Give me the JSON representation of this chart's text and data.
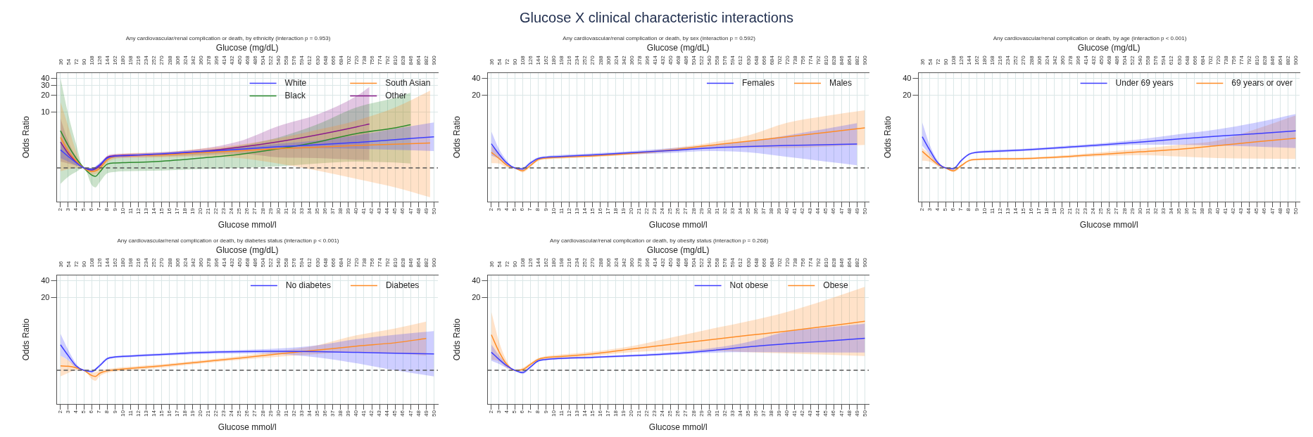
{
  "chart_data": [
    {
      "type": "line",
      "subtitle": "Any cardiovascular/renal complication or death, by ethnicity (interaction p = 0.953)",
      "xlabel": "Glucose mmol/l",
      "x2label": "Glucose (mg/dL)",
      "ylabel": "Odds Ratio",
      "log": "y",
      "grid": true,
      "legend": "top right",
      "xlim": [
        1.5,
        50.5
      ],
      "xticks": [
        2,
        3,
        4,
        5,
        6,
        7,
        8,
        9,
        10,
        11,
        12,
        13,
        14,
        15,
        16,
        17,
        18,
        19,
        20,
        21,
        22,
        23,
        24,
        25,
        26,
        27,
        28,
        29,
        30,
        31,
        32,
        33,
        34,
        35,
        36,
        37,
        38,
        39,
        40,
        41,
        42,
        43,
        44,
        45,
        46,
        47,
        48,
        49,
        50
      ],
      "x2lim": [
        27,
        909
      ],
      "x2ticks": [
        36,
        54,
        72,
        90,
        108,
        126,
        144,
        162,
        180,
        198,
        216,
        234,
        252,
        270,
        288,
        306,
        324,
        342,
        360,
        378,
        396,
        414,
        432,
        450,
        468,
        486,
        504,
        522,
        540,
        558,
        576,
        594,
        612,
        630,
        648,
        666,
        684,
        702,
        720,
        738,
        756,
        774,
        792,
        810,
        828,
        846,
        864,
        882,
        900
      ],
      "ylim": [
        0.25,
        50
      ],
      "yticks": [
        10,
        20,
        30,
        40
      ],
      "ref_lines": [
        {
          "axis": "y",
          "value": 1,
          "color": "#555555",
          "line_style": "dashed"
        }
      ],
      "series": [
        {
          "name": "White",
          "color": "#3d3dff",
          "x": [
            2,
            3,
            4,
            5,
            6,
            7,
            8,
            9,
            10,
            15,
            20,
            25,
            30,
            35,
            40,
            45,
            50
          ],
          "values": [
            2.1,
            1.6,
            1.25,
            1,
            0.94,
            1.13,
            1.5,
            1.63,
            1.65,
            1.79,
            1.96,
            2.15,
            2.4,
            2.6,
            2.85,
            3.2,
            3.6
          ],
          "lower": [
            1.5,
            1.3,
            1.12,
            1,
            0.88,
            1.05,
            1.4,
            1.52,
            1.55,
            1.68,
            1.84,
            2.0,
            2.15,
            2.25,
            2.2,
            2.1,
            2.0
          ],
          "upper": [
            3.0,
            2.0,
            1.4,
            1,
            1.0,
            1.22,
            1.6,
            1.72,
            1.75,
            1.9,
            2.1,
            2.3,
            2.7,
            3.1,
            3.8,
            5.0,
            6.5
          ]
        },
        {
          "name": "South Asian",
          "color": "#ff8c26",
          "x": [
            2,
            3,
            4,
            5,
            6,
            7,
            8,
            9,
            10,
            15,
            20,
            25,
            30,
            35,
            40,
            45,
            49.5
          ],
          "values": [
            3.5,
            2.0,
            1.35,
            1,
            0.86,
            0.97,
            1.39,
            1.6,
            1.63,
            1.71,
            1.88,
            2.02,
            2.22,
            2.34,
            2.52,
            2.65,
            2.8
          ],
          "lower": [
            0.87,
            0.95,
            1.0,
            1,
            0.75,
            0.85,
            1.25,
            1.45,
            1.5,
            1.55,
            1.6,
            1.5,
            1.2,
            0.9,
            0.64,
            0.45,
            0.3
          ],
          "upper": [
            15,
            5.5,
            2.0,
            1,
            0.98,
            1.1,
            1.55,
            1.72,
            1.8,
            1.9,
            2.2,
            2.6,
            3.4,
            4.8,
            7,
            12,
            24
          ]
        },
        {
          "name": "Black",
          "color": "#2e8b2e",
          "x": [
            2,
            3,
            4,
            5,
            6,
            6.5,
            7,
            8,
            9,
            10,
            15,
            20,
            25,
            30,
            35,
            40,
            45,
            47
          ],
          "values": [
            4.6,
            2.5,
            1.5,
            1,
            0.75,
            0.71,
            0.83,
            1.17,
            1.23,
            1.24,
            1.32,
            1.5,
            1.75,
            2.2,
            2.9,
            4.1,
            5.2,
            5.9
          ],
          "lower": [
            0.52,
            0.7,
            0.85,
            1,
            0.5,
            0.45,
            0.55,
            0.8,
            0.85,
            0.87,
            0.9,
            0.95,
            1.0,
            1.07,
            1.2,
            1.3,
            1.25,
            1.2
          ],
          "upper": [
            40,
            9,
            2.7,
            1,
            1.0,
            1.02,
            1.15,
            1.5,
            1.55,
            1.55,
            1.7,
            2.0,
            2.5,
            3.5,
            6,
            12,
            18,
            22
          ]
        },
        {
          "name": "Other",
          "color": "#8b1c8b",
          "x": [
            2,
            3,
            4,
            5,
            6,
            7,
            8,
            9,
            10,
            15,
            20,
            25,
            30,
            35,
            40,
            41.7
          ],
          "values": [
            2.9,
            1.8,
            1.3,
            1,
            0.92,
            1.07,
            1.55,
            1.66,
            1.68,
            1.75,
            1.96,
            2.34,
            2.94,
            3.9,
            5.4,
            6.1
          ],
          "lower": [
            1.3,
            1.2,
            1.1,
            1,
            0.85,
            0.98,
            1.45,
            1.55,
            1.55,
            1.6,
            1.7,
            1.8,
            1.55,
            1.5,
            1.4,
            1.39
          ],
          "upper": [
            7.7,
            3.0,
            1.6,
            1,
            1.0,
            1.17,
            1.65,
            1.78,
            1.8,
            1.9,
            2.2,
            3.0,
            5.6,
            9,
            19,
            28
          ]
        }
      ]
    },
    {
      "type": "line",
      "title": "Glucose X clinical characteristic interactions",
      "subtitle": "Any cardiovascular/renal complication or death, by sex (interaction p = 0.592)",
      "xlabel": "Glucose mmol/l",
      "x2label": "Glucose (mg/dL)",
      "ylabel": "Odds Ratio",
      "log": "y",
      "grid": true,
      "legend": "top right",
      "xlim": [
        1.5,
        50.5
      ],
      "xticks": [
        2,
        3,
        4,
        5,
        6,
        7,
        8,
        9,
        10,
        11,
        12,
        13,
        14,
        15,
        16,
        17,
        18,
        19,
        20,
        21,
        22,
        23,
        24,
        25,
        26,
        27,
        28,
        29,
        30,
        31,
        32,
        33,
        34,
        35,
        36,
        37,
        38,
        39,
        40,
        41,
        42,
        43,
        44,
        45,
        46,
        47,
        48,
        49,
        50
      ],
      "x2lim": [
        27,
        909
      ],
      "x2ticks": [
        36,
        54,
        72,
        90,
        108,
        126,
        144,
        162,
        180,
        198,
        216,
        234,
        252,
        270,
        288,
        306,
        324,
        342,
        360,
        378,
        396,
        414,
        432,
        450,
        468,
        486,
        504,
        522,
        540,
        558,
        576,
        594,
        612,
        630,
        648,
        666,
        684,
        702,
        720,
        738,
        756,
        774,
        792,
        810,
        828,
        846,
        864,
        882,
        900
      ],
      "ylim": [
        0.25,
        50
      ],
      "yticks": [
        20,
        40
      ],
      "ref_lines": [
        {
          "axis": "y",
          "value": 1,
          "color": "#555555",
          "line_style": "dashed"
        }
      ],
      "series": [
        {
          "name": "Females",
          "color": "#3d3dff",
          "x": [
            2,
            3,
            4,
            5,
            6,
            7,
            8,
            9,
            10,
            15,
            20,
            25,
            30,
            35,
            40,
            45,
            49
          ],
          "values": [
            2.7,
            1.75,
            1.22,
            1,
            0.96,
            1.22,
            1.47,
            1.55,
            1.58,
            1.71,
            1.88,
            2.05,
            2.27,
            2.41,
            2.52,
            2.6,
            2.68
          ],
          "lower": [
            1.66,
            1.45,
            1.12,
            1,
            0.9,
            1.15,
            1.4,
            1.48,
            1.5,
            1.62,
            1.75,
            1.85,
            2.0,
            1.9,
            1.58,
            1.3,
            1.12
          ],
          "upper": [
            4.45,
            2.15,
            1.35,
            1,
            1.02,
            1.3,
            1.55,
            1.63,
            1.68,
            1.82,
            2.0,
            2.25,
            2.55,
            3.0,
            3.8,
            5.0,
            6.3
          ]
        },
        {
          "name": "Males",
          "color": "#ff8c26",
          "x": [
            2,
            3,
            4,
            5,
            6,
            7,
            8,
            9,
            10,
            15,
            20,
            25,
            30,
            35,
            40,
            45,
            50
          ],
          "values": [
            1.9,
            1.47,
            1.12,
            1,
            0.89,
            1.1,
            1.41,
            1.5,
            1.53,
            1.64,
            1.81,
            2.09,
            2.52,
            3.0,
            3.6,
            4.3,
            5.2
          ],
          "lower": [
            1.22,
            1.2,
            1.02,
            1,
            0.83,
            1.03,
            1.33,
            1.42,
            1.45,
            1.56,
            1.72,
            1.95,
            2.25,
            2.3,
            2.27,
            2.4,
            2.57
          ],
          "upper": [
            2.5,
            1.8,
            1.22,
            1,
            0.95,
            1.17,
            1.48,
            1.58,
            1.6,
            1.72,
            1.9,
            2.25,
            2.8,
            3.8,
            6.4,
            8.5,
            10.7
          ]
        }
      ]
    },
    {
      "type": "line",
      "subtitle": "Any cardiovascular/renal complication or death, by age (interaction p < 0.001)",
      "xlabel": "Glucose mmol/l",
      "x2label": "Glucose (mg/dL)",
      "ylabel": "Odds Ratio",
      "log": "y",
      "grid": true,
      "legend": "top right",
      "xlim": [
        1.5,
        50.5
      ],
      "xticks": [
        2,
        3,
        4,
        5,
        6,
        7,
        8,
        9,
        10,
        11,
        12,
        13,
        14,
        15,
        16,
        17,
        18,
        19,
        20,
        21,
        22,
        23,
        24,
        25,
        26,
        27,
        28,
        29,
        30,
        31,
        32,
        33,
        34,
        35,
        36,
        37,
        38,
        39,
        40,
        41,
        42,
        43,
        44,
        45,
        46,
        47,
        48,
        49,
        50
      ],
      "x2lim": [
        27,
        909
      ],
      "x2ticks": [
        36,
        54,
        72,
        90,
        108,
        126,
        144,
        162,
        180,
        198,
        216,
        234,
        252,
        270,
        288,
        306,
        324,
        342,
        360,
        378,
        396,
        414,
        432,
        450,
        468,
        486,
        504,
        522,
        540,
        558,
        576,
        594,
        612,
        630,
        648,
        666,
        684,
        702,
        720,
        738,
        756,
        774,
        792,
        810,
        828,
        846,
        864,
        882,
        900
      ],
      "ylim": [
        0.25,
        50
      ],
      "yticks": [
        20,
        40
      ],
      "ref_lines": [
        {
          "axis": "y",
          "value": 1,
          "color": "#555555",
          "line_style": "dashed"
        }
      ],
      "series": [
        {
          "name": "Under 69 years",
          "color": "#3d3dff",
          "x": [
            2,
            3,
            4,
            5,
            6,
            7,
            8,
            9,
            10,
            15,
            20,
            25,
            30,
            35,
            40,
            45,
            50
          ],
          "values": [
            3.6,
            2.05,
            1.24,
            1,
            0.97,
            1.35,
            1.75,
            1.9,
            1.94,
            2.09,
            2.32,
            2.57,
            2.9,
            3.3,
            3.7,
            4.1,
            4.6
          ],
          "lower": [
            2.5,
            1.7,
            1.12,
            1,
            0.92,
            1.28,
            1.68,
            1.82,
            1.85,
            2.0,
            2.2,
            2.42,
            2.6,
            2.6,
            2.5,
            2.4,
            2.27
          ],
          "upper": [
            6.5,
            2.5,
            1.35,
            1,
            1.02,
            1.42,
            1.82,
            1.98,
            2.05,
            2.2,
            2.45,
            2.75,
            3.25,
            4.0,
            4.9,
            6.5,
            9.2
          ]
        },
        {
          "name": "69 years or over",
          "color": "#ff8c26",
          "x": [
            2,
            3,
            4,
            5,
            6,
            7,
            8,
            9,
            10,
            15,
            20,
            25,
            30,
            35,
            40,
            45,
            50
          ],
          "values": [
            1.98,
            1.5,
            1.16,
            1,
            0.89,
            1.1,
            1.35,
            1.42,
            1.44,
            1.47,
            1.58,
            1.75,
            1.94,
            2.15,
            2.5,
            2.94,
            3.4
          ],
          "lower": [
            1.35,
            1.3,
            1.08,
            1,
            0.84,
            1.04,
            1.3,
            1.37,
            1.38,
            1.41,
            1.5,
            1.62,
            1.7,
            1.6,
            1.5,
            1.47,
            1.45
          ],
          "upper": [
            2.27,
            1.75,
            1.25,
            1,
            0.94,
            1.15,
            1.4,
            1.47,
            1.5,
            1.53,
            1.67,
            1.9,
            2.2,
            2.6,
            3.1,
            5.0,
            8.7
          ]
        }
      ]
    },
    {
      "type": "line",
      "subtitle": "Any cardiovascular/renal complication or death, by diabetes status (interaction p < 0.001)",
      "xlabel": "Glucose mmol/l",
      "x2label": "Glucose (mg/dL)",
      "ylabel": "Odds Ratio",
      "log": "y",
      "grid": true,
      "legend": "top right",
      "xlim": [
        1.5,
        50.5
      ],
      "xticks": [
        2,
        3,
        4,
        5,
        6,
        7,
        8,
        9,
        10,
        11,
        12,
        13,
        14,
        15,
        16,
        17,
        18,
        19,
        20,
        21,
        22,
        23,
        24,
        25,
        26,
        27,
        28,
        29,
        30,
        31,
        32,
        33,
        34,
        35,
        36,
        37,
        38,
        39,
        40,
        41,
        42,
        43,
        44,
        45,
        46,
        47,
        48,
        49,
        50
      ],
      "x2lim": [
        27,
        909
      ],
      "x2ticks": [
        36,
        54,
        72,
        90,
        108,
        126,
        144,
        162,
        180,
        198,
        216,
        234,
        252,
        270,
        288,
        306,
        324,
        342,
        360,
        378,
        396,
        414,
        432,
        450,
        468,
        486,
        504,
        522,
        540,
        558,
        576,
        594,
        612,
        630,
        648,
        666,
        684,
        702,
        720,
        738,
        756,
        774,
        792,
        810,
        828,
        846,
        864,
        882,
        900
      ],
      "ylim": [
        0.25,
        50
      ],
      "yticks": [
        20,
        40
      ],
      "ref_lines": [
        {
          "axis": "y",
          "value": 1,
          "color": "#555555",
          "line_style": "dashed"
        }
      ],
      "series": [
        {
          "name": "No diabetes",
          "color": "#3d3dff",
          "x": [
            2,
            3,
            4,
            5,
            6,
            7,
            8,
            9,
            10,
            15,
            20,
            25,
            30,
            35,
            40,
            45,
            50
          ],
          "values": [
            2.85,
            1.82,
            1.2,
            1,
            0.95,
            1.2,
            1.61,
            1.73,
            1.77,
            1.92,
            2.07,
            2.15,
            2.18,
            2.15,
            2.09,
            2.02,
            1.96
          ],
          "lower": [
            1.82,
            1.5,
            1.1,
            1,
            0.9,
            1.13,
            1.53,
            1.65,
            1.68,
            1.82,
            1.95,
            2.0,
            1.95,
            1.7,
            1.34,
            1.0,
            0.78
          ],
          "upper": [
            4.5,
            2.3,
            1.32,
            1,
            1.0,
            1.27,
            1.7,
            1.8,
            1.85,
            2.02,
            2.2,
            2.3,
            2.45,
            2.8,
            3.6,
            4.3,
            5.0
          ]
        },
        {
          "name": "Diabetes",
          "color": "#ff8c26",
          "x": [
            2,
            3,
            4,
            5,
            6,
            6.5,
            7,
            8,
            9,
            10,
            15,
            20,
            25,
            30,
            35,
            40,
            45,
            49
          ],
          "values": [
            1.2,
            1.18,
            1.11,
            1,
            0.81,
            0.78,
            0.88,
            0.98,
            1.02,
            1.05,
            1.2,
            1.41,
            1.65,
            1.96,
            2.29,
            2.7,
            3.1,
            3.7
          ],
          "lower": [
            0.78,
            0.9,
            1.0,
            1,
            0.7,
            0.65,
            0.78,
            0.9,
            0.95,
            0.97,
            1.12,
            1.32,
            1.53,
            1.75,
            1.95,
            2.13,
            2.0,
            1.82
          ],
          "upper": [
            1.82,
            1.5,
            1.22,
            1,
            0.9,
            0.93,
            0.98,
            1.06,
            1.09,
            1.13,
            1.28,
            1.5,
            1.78,
            2.2,
            2.8,
            4.2,
            5.6,
            7.4
          ]
        }
      ]
    },
    {
      "type": "line",
      "subtitle": "Any cardiovascular/renal complication or death, by obesity status (interaction p = 0.268)",
      "xlabel": "Glucose mmol/l",
      "x2label": "Glucose (mg/dL)",
      "ylabel": "Odds Ratio",
      "log": "y",
      "grid": true,
      "legend": "top right",
      "xlim": [
        1.5,
        50.5
      ],
      "xticks": [
        2,
        3,
        4,
        5,
        6,
        7,
        8,
        9,
        10,
        11,
        12,
        13,
        14,
        15,
        16,
        17,
        18,
        19,
        20,
        21,
        22,
        23,
        24,
        25,
        26,
        27,
        28,
        29,
        30,
        31,
        32,
        33,
        34,
        35,
        36,
        37,
        38,
        39,
        40,
        41,
        42,
        43,
        44,
        45,
        46,
        47,
        48,
        49,
        50
      ],
      "x2lim": [
        27,
        909
      ],
      "x2ticks": [
        36,
        54,
        72,
        90,
        108,
        126,
        144,
        162,
        180,
        198,
        216,
        234,
        252,
        270,
        288,
        306,
        324,
        342,
        360,
        378,
        396,
        414,
        432,
        450,
        468,
        486,
        504,
        522,
        540,
        558,
        576,
        594,
        612,
        630,
        648,
        666,
        684,
        702,
        720,
        738,
        756,
        774,
        792,
        810,
        828,
        846,
        864,
        882,
        900
      ],
      "ylim": [
        0.25,
        50
      ],
      "yticks": [
        20,
        40
      ],
      "ref_lines": [
        {
          "axis": "y",
          "value": 1,
          "color": "#555555",
          "line_style": "dashed"
        }
      ],
      "series": [
        {
          "name": "Not obese",
          "color": "#3d3dff",
          "x": [
            2,
            3,
            4,
            5,
            6,
            7,
            8,
            9,
            10,
            15,
            20,
            25,
            30,
            35,
            40,
            45,
            50
          ],
          "values": [
            2.1,
            1.56,
            1.2,
            1,
            0.91,
            1.14,
            1.47,
            1.56,
            1.6,
            1.7,
            1.82,
            1.98,
            2.24,
            2.62,
            2.97,
            3.33,
            3.73
          ],
          "lower": [
            1.48,
            1.3,
            1.1,
            1,
            0.86,
            1.08,
            1.41,
            1.51,
            1.55,
            1.64,
            1.75,
            1.88,
            2.05,
            2.1,
            2.09,
            2.08,
            2.07
          ],
          "upper": [
            2.9,
            1.85,
            1.3,
            1,
            0.96,
            1.2,
            1.53,
            1.62,
            1.66,
            1.77,
            1.9,
            2.1,
            2.45,
            3.2,
            4.9,
            5.8,
            6.8
          ]
        },
        {
          "name": "Obese",
          "color": "#ff8c26",
          "x": [
            2,
            3,
            4,
            5,
            6,
            7,
            8,
            9,
            10,
            15,
            20,
            25,
            30,
            35,
            40,
            45,
            50
          ],
          "values": [
            4.3,
            2.13,
            1.27,
            1,
            1.03,
            1.27,
            1.56,
            1.68,
            1.73,
            1.96,
            2.4,
            2.9,
            3.5,
            4.2,
            5.0,
            6.1,
            7.5
          ],
          "lower": [
            1.56,
            1.45,
            1.1,
            1,
            0.95,
            1.2,
            1.48,
            1.58,
            1.6,
            1.8,
            2.1,
            2.25,
            2.24,
            2.1,
            2.0,
            1.9,
            1.8
          ],
          "upper": [
            11,
            3.2,
            1.45,
            1,
            1.1,
            1.35,
            1.65,
            1.78,
            1.85,
            2.15,
            2.7,
            3.8,
            5.4,
            7.5,
            11,
            18,
            31
          ]
        }
      ]
    }
  ]
}
